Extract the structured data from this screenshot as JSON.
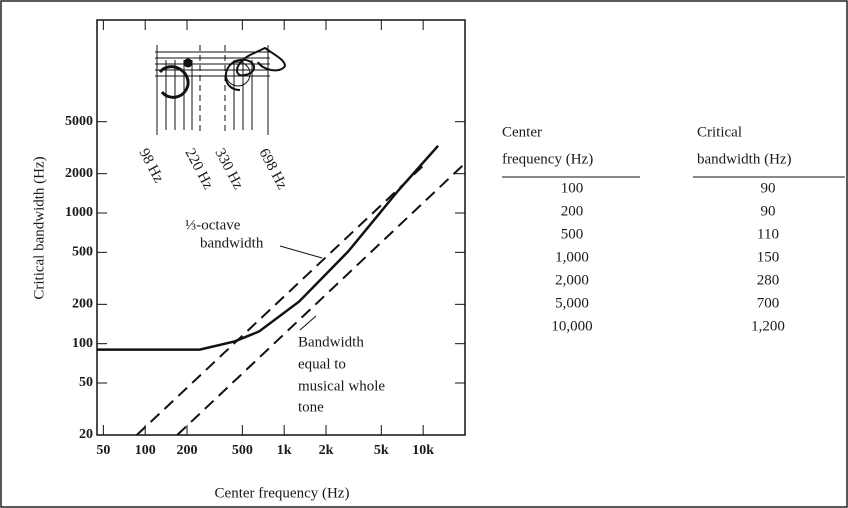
{
  "chart_data": {
    "type": "line",
    "log_x": true,
    "log_y": true,
    "x_label": "Center frequency (Hz)",
    "y_label": "Critical bandwidth (Hz)",
    "xlim": [
      45,
      20000
    ],
    "ylim": [
      20,
      30000
    ],
    "xticks": [
      50,
      100,
      200,
      500,
      {
        "value": 1000,
        "label": "1k"
      },
      {
        "value": 2000,
        "label": "2k"
      },
      {
        "value": 5000,
        "label": "5k"
      },
      {
        "value": 10000,
        "label": "10k"
      }
    ],
    "yticks": [
      20,
      50,
      100,
      200,
      500,
      1000,
      2000,
      5000
    ],
    "series": [
      {
        "color": "#111111",
        "dash": false,
        "x": [
          45,
          247,
          440,
          660,
          1280,
          2900,
          6600,
          12800
        ],
        "values": [
          90,
          90,
          104,
          124,
          210,
          510,
          1480,
          3270
        ]
      },
      {
        "color": "#111111",
        "dash": true,
        "x": [
          87,
          10000
        ],
        "values": [
          20,
          2300
        ]
      },
      {
        "color": "#111111",
        "dash": true,
        "x": [
          170,
          20000
        ],
        "values": [
          20,
          2400
        ]
      }
    ],
    "annotations": [
      {
        "lines": [
          "⅓-octave",
          "bandwidth"
        ]
      },
      {
        "lines": [
          "Bandwidth",
          "equal to",
          "musical whole",
          "tone"
        ]
      }
    ],
    "inset_labels": [
      "98 Hz",
      "220 Hz",
      "330 Hz",
      "698 Hz"
    ]
  },
  "table": {
    "header": [
      [
        "Center",
        "frequency (Hz)"
      ],
      [
        "Critical",
        "bandwidth (Hz)"
      ]
    ],
    "rows": [
      [
        "100",
        "90"
      ],
      [
        "200",
        "90"
      ],
      [
        "500",
        "110"
      ],
      [
        "1,000",
        "150"
      ],
      [
        "2,000",
        "280"
      ],
      [
        "5,000",
        "700"
      ],
      [
        "10,000",
        "1,200"
      ]
    ]
  }
}
